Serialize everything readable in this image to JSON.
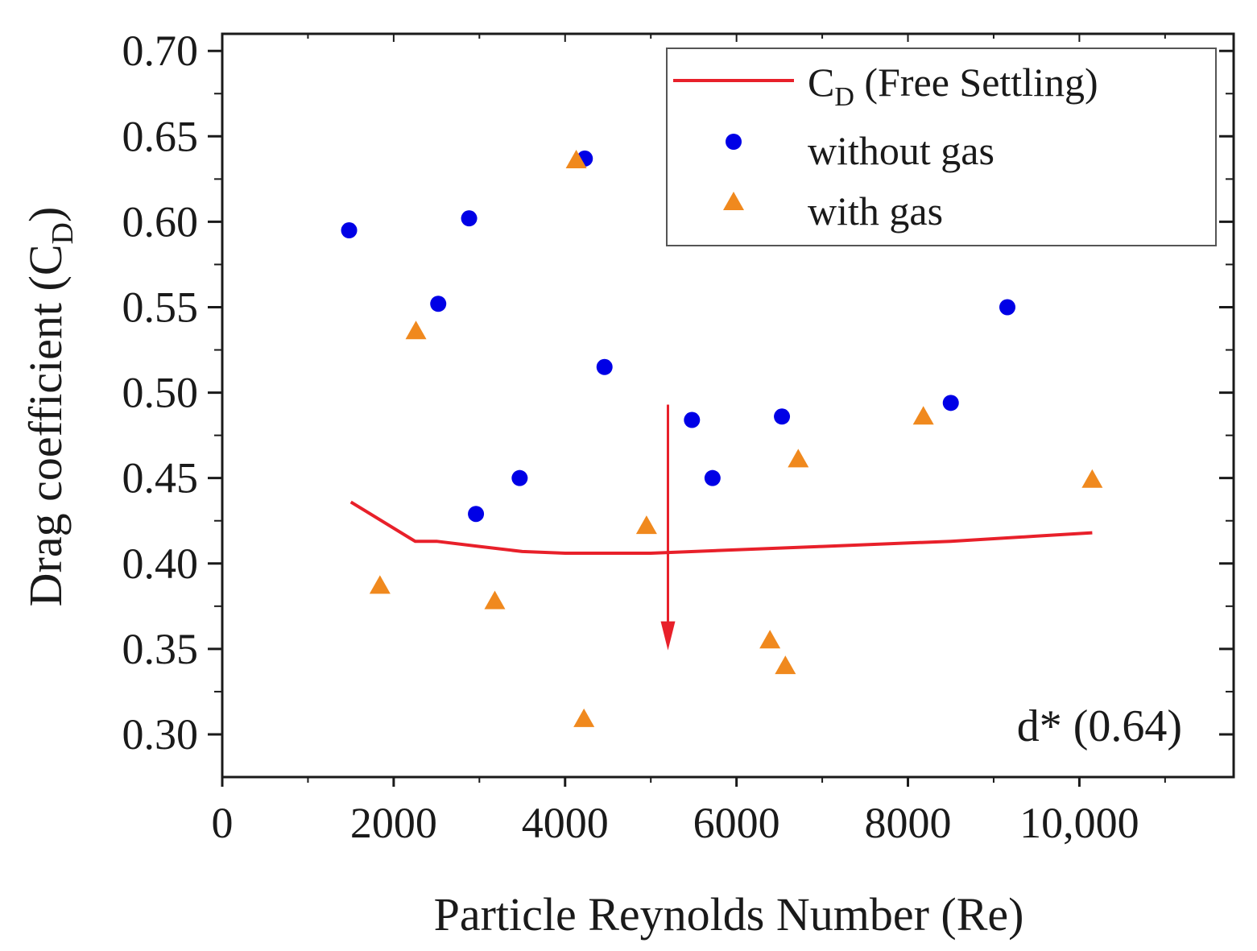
{
  "chart_data": {
    "type": "scatter",
    "title": "",
    "xlabel": "Particle Reynolds Number (Re)",
    "ylabel": "Drag coefficient (C",
    "ylabel_sub": "D",
    "ylabel_close": ")",
    "xlim": [
      0,
      11800
    ],
    "ylim": [
      0.275,
      0.71
    ],
    "x_ticks": [
      0,
      2000,
      4000,
      6000,
      8000,
      10000
    ],
    "x_tick_labels": [
      "0",
      "2000",
      "4000",
      "6000",
      "8000",
      "10,000"
    ],
    "y_ticks": [
      0.3,
      0.35,
      0.4,
      0.45,
      0.5,
      0.55,
      0.6,
      0.65,
      0.7
    ],
    "y_tick_labels": [
      "0.30",
      "0.35",
      "0.40",
      "0.45",
      "0.50",
      "0.55",
      "0.60",
      "0.65",
      "0.70"
    ],
    "grid": false,
    "legend_position": "top-right",
    "series": [
      {
        "name": "C",
        "name_sub": "D",
        "name_suffix": " (Free Settling)",
        "kind": "line",
        "color": "#e8202a",
        "points": [
          [
            1500,
            0.436
          ],
          [
            2250,
            0.413
          ],
          [
            2500,
            0.413
          ],
          [
            3000,
            0.41
          ],
          [
            3500,
            0.407
          ],
          [
            4000,
            0.406
          ],
          [
            5000,
            0.406
          ],
          [
            6000,
            0.408
          ],
          [
            7000,
            0.41
          ],
          [
            8500,
            0.413
          ],
          [
            9500,
            0.416
          ],
          [
            10150,
            0.418
          ]
        ]
      },
      {
        "name": "without gas",
        "kind": "circle",
        "color": "#0000e6",
        "points": [
          [
            1480,
            0.595
          ],
          [
            2520,
            0.552
          ],
          [
            2880,
            0.602
          ],
          [
            2960,
            0.429
          ],
          [
            3470,
            0.45
          ],
          [
            4230,
            0.637
          ],
          [
            4460,
            0.515
          ],
          [
            5480,
            0.484
          ],
          [
            5720,
            0.45
          ],
          [
            6530,
            0.486
          ],
          [
            8500,
            0.494
          ],
          [
            9160,
            0.55
          ]
        ]
      },
      {
        "name": "with gas",
        "kind": "triangle",
        "color": "#f0891e",
        "points": [
          [
            1840,
            0.387
          ],
          [
            2260,
            0.536
          ],
          [
            3180,
            0.378
          ],
          [
            4130,
            0.636
          ],
          [
            4220,
            0.309
          ],
          [
            4950,
            0.422
          ],
          [
            6390,
            0.355
          ],
          [
            6570,
            0.34
          ],
          [
            6720,
            0.461
          ],
          [
            8180,
            0.486
          ],
          [
            10150,
            0.449
          ]
        ]
      }
    ],
    "arrow": {
      "x": 5200,
      "y_start": 0.493,
      "y_end": 0.352,
      "color": "#e8202a"
    },
    "annotation": "d* (0.64)"
  }
}
